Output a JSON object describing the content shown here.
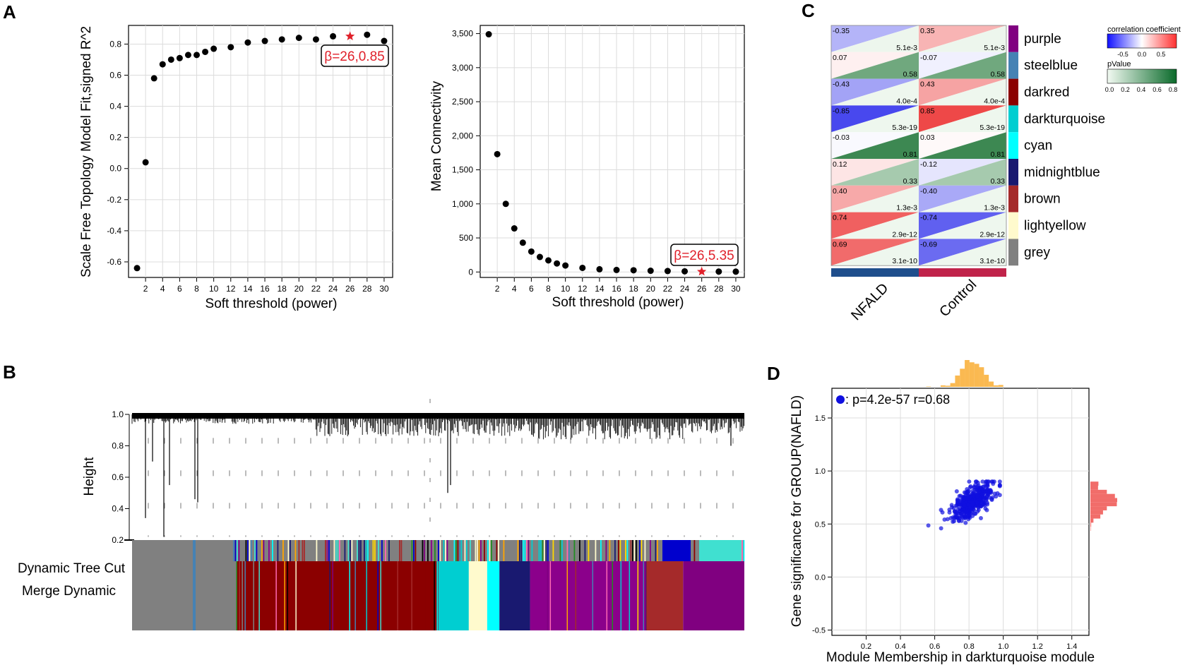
{
  "panel_labels": {
    "A": "A",
    "B": "B",
    "C": "C",
    "D": "D"
  },
  "chart_data": [
    {
      "id": "A1",
      "type": "scatter",
      "xlabel": "Soft threshold (power)",
      "ylabel": "Scale Free Topology Model Fit,signed R^2",
      "xlim": [
        0,
        31
      ],
      "ylim": [
        -0.7,
        0.92
      ],
      "x_ticks": [
        2,
        4,
        6,
        8,
        10,
        12,
        14,
        16,
        18,
        20,
        22,
        24,
        26,
        28,
        30
      ],
      "y_ticks": [
        -0.6,
        -0.4,
        -0.2,
        0.0,
        0.2,
        0.4,
        0.6,
        0.8
      ],
      "y_tick_labels": [
        "-0.6",
        "-0.4",
        "-0.2",
        "0.0",
        "0.2",
        "0.4",
        "0.6",
        "0.8"
      ],
      "x": [
        1,
        2,
        3,
        4,
        5,
        6,
        7,
        8,
        9,
        10,
        12,
        14,
        16,
        18,
        20,
        22,
        24,
        28,
        30
      ],
      "y": [
        -0.64,
        0.04,
        0.58,
        0.67,
        0.7,
        0.71,
        0.73,
        0.73,
        0.75,
        0.77,
        0.78,
        0.81,
        0.82,
        0.83,
        0.84,
        0.83,
        0.85,
        0.86,
        0.82
      ],
      "highlight": {
        "x": 26,
        "y": 0.85
      },
      "annotation": "β=26,0.85"
    },
    {
      "id": "A2",
      "type": "scatter",
      "xlabel": "Soft threshold (power)",
      "ylabel": "Mean Connectivity",
      "xlim": [
        0,
        31
      ],
      "ylim": [
        -80,
        3620
      ],
      "x_ticks": [
        2,
        4,
        6,
        8,
        10,
        12,
        14,
        16,
        18,
        20,
        22,
        24,
        26,
        28,
        30
      ],
      "y_ticks": [
        0,
        500,
        1000,
        1500,
        2000,
        2500,
        3000,
        3500
      ],
      "y_tick_labels": [
        "0",
        "500",
        "1,000",
        "1,500",
        "2,000",
        "2,500",
        "3,000",
        "3,500"
      ],
      "x": [
        1,
        2,
        3,
        4,
        5,
        6,
        7,
        8,
        9,
        10,
        12,
        14,
        16,
        18,
        20,
        22,
        24,
        28,
        30
      ],
      "y": [
        3490,
        1730,
        1000,
        640,
        430,
        300,
        220,
        170,
        125,
        95,
        60,
        40,
        30,
        25,
        18,
        14,
        10,
        6,
        5
      ],
      "highlight": {
        "x": 26,
        "y": 5.35
      },
      "annotation": "β=26,5.35"
    },
    {
      "id": "B",
      "type": "dendrogram",
      "ylabel": "Height",
      "y_ticks": [
        0.2,
        0.4,
        0.6,
        0.8,
        1.0
      ],
      "y_tick_labels": [
        "0.2",
        "0.4",
        "0.6",
        "0.8",
        "1.0"
      ],
      "row_labels": [
        "Dynamic Tree Cut",
        "Merge Dynamic"
      ],
      "merged_modules": [
        {
          "color": "#808080",
          "fraction": 0.17
        },
        {
          "color": "#8b0000",
          "fraction": 0.33
        },
        {
          "color": "#00ced1",
          "fraction": 0.05
        },
        {
          "color": "#fffacd",
          "fraction": 0.03
        },
        {
          "color": "#00ffff",
          "fraction": 0.02
        },
        {
          "color": "#191970",
          "fraction": 0.05
        },
        {
          "color": "#8b008b",
          "fraction": 0.19
        },
        {
          "color": "#a52a2a",
          "fraction": 0.06
        },
        {
          "color": "#800080",
          "fraction": 0.1
        }
      ]
    },
    {
      "id": "C",
      "type": "heatmap",
      "columns": [
        "NFALD",
        "Control"
      ],
      "column_bar_colors": [
        "#1f4e8c",
        "#c0234a"
      ],
      "modules": [
        "purple",
        "steelblue",
        "darkred",
        "darkturquoise",
        "cyan",
        "midnightblue",
        "brown",
        "lightyellow",
        "grey"
      ],
      "module_colors": [
        "#800080",
        "#4682b4",
        "#8b0000",
        "#00ced1",
        "#00ffff",
        "#191970",
        "#a52a2a",
        "#fffacd",
        "#808080"
      ],
      "cells": [
        [
          {
            "r": "-0.35",
            "p": "5.1e-3",
            "rv": -0.35,
            "pv": 0.005
          },
          {
            "r": "0.35",
            "p": "5.1e-3",
            "rv": 0.35,
            "pv": 0.005
          }
        ],
        [
          {
            "r": "0.07",
            "p": "0.58",
            "rv": 0.07,
            "pv": 0.58
          },
          {
            "r": "-0.07",
            "p": "0.58",
            "rv": -0.07,
            "pv": 0.58
          }
        ],
        [
          {
            "r": "-0.43",
            "p": "4.0e-4",
            "rv": -0.43,
            "pv": 0.0004
          },
          {
            "r": "0.43",
            "p": "4.0e-4",
            "rv": 0.43,
            "pv": 0.0004
          }
        ],
        [
          {
            "r": "-0.85",
            "p": "5.3e-19",
            "rv": -0.85,
            "pv": 0.0
          },
          {
            "r": "0.85",
            "p": "5.3e-19",
            "rv": 0.85,
            "pv": 0.0
          }
        ],
        [
          {
            "r": "-0.03",
            "p": "0.81",
            "rv": -0.03,
            "pv": 0.81
          },
          {
            "r": "0.03",
            "p": "0.81",
            "rv": 0.03,
            "pv": 0.81
          }
        ],
        [
          {
            "r": "0.12",
            "p": "0.33",
            "rv": 0.12,
            "pv": 0.33
          },
          {
            "r": "-0.12",
            "p": "0.33",
            "rv": -0.12,
            "pv": 0.33
          }
        ],
        [
          {
            "r": "0.40",
            "p": "1.3e-3",
            "rv": 0.4,
            "pv": 0.0013
          },
          {
            "r": "-0.40",
            "p": "1.3e-3",
            "rv": -0.4,
            "pv": 0.0013
          }
        ],
        [
          {
            "r": "0.74",
            "p": "2.9e-12",
            "rv": 0.74,
            "pv": 0.0
          },
          {
            "r": "-0.74",
            "p": "2.9e-12",
            "rv": -0.74,
            "pv": 0.0
          }
        ],
        [
          {
            "r": "0.69",
            "p": "3.1e-10",
            "rv": 0.69,
            "pv": 0.0
          },
          {
            "r": "-0.69",
            "p": "3.1e-10",
            "rv": -0.69,
            "pv": 0.0
          }
        ]
      ],
      "legend": {
        "corr_title": "correlation coefficient",
        "corr_ticks": [
          "-0.5",
          "0.0",
          "0.5"
        ],
        "p_title": "pValue",
        "p_ticks": [
          "0.0",
          "0.2",
          "0.4",
          "0.6",
          "0.8"
        ]
      }
    },
    {
      "id": "D",
      "type": "scatter",
      "xlabel": "Module Membership in darkturquoise module",
      "ylabel": "Gene significance for GROUP(NAFLD)",
      "xlim": [
        0,
        1.5
      ],
      "ylim": [
        -0.55,
        1.78
      ],
      "x_ticks": [
        0.2,
        0.4,
        0.6,
        0.8,
        1.0,
        1.2,
        1.4
      ],
      "x_tick_labels": [
        "0.2",
        "0.4",
        "0.6",
        "0.8",
        "1.0",
        "1.2",
        "1.4"
      ],
      "y_ticks": [
        -0.5,
        0.0,
        0.5,
        1.0,
        1.5
      ],
      "y_tick_labels": [
        "-0.5",
        "0.0",
        "0.5",
        "1.0",
        "1.5"
      ],
      "legend": ": p=4.2e-57 r=0.68",
      "point_color": "#1010e0",
      "cluster": {
        "center_x": 0.82,
        "center_y": 0.72,
        "count": 400,
        "x_range": [
          0.55,
          0.98
        ],
        "y_range": [
          0.28,
          0.9
        ]
      },
      "top_marginal_color": "#f9a825",
      "right_marginal_color": "#ef5350"
    }
  ]
}
